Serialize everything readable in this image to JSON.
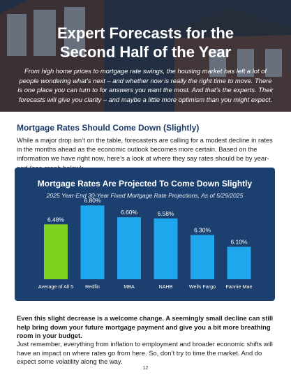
{
  "hero": {
    "title_line1": "Expert Forecasts for the",
    "title_line2": "Second Half of the Year",
    "subtitle": "From high home prices to mortgage rate swings, the housing market has left a lot of people wondering what’s next – and whether now is really the right time to move. There is one place you can turn to for answers you want the most. And that’s the experts. Their forecasts will give you clarity – and maybe a little more optimism than you might expect."
  },
  "section": {
    "title": "Mortgage Rates Should Come Down (Slightly)",
    "intro_text": "While a major drop isn’t on the table, forecasters are calling for a modest decline in rates in the months ahead as the economic outlook becomes more certain. Based on the information we have right now, here’s a look at where they say rates should be by year-end (",
    "intro_em": "see graph below",
    "intro_end": "):"
  },
  "chart_data": {
    "type": "bar",
    "title": "Mortgage Rates Are Projected To Come Down Slightly",
    "subtitle": "2025 Year-End 30-Year Fixed Mortgage Rate Projections, As of 5/29/2025",
    "categories": [
      "Average of All 5",
      "Redfin",
      "MBA",
      "NAHB",
      "Wells Fargo",
      "Fannie Mae"
    ],
    "values": [
      6.48,
      6.8,
      6.6,
      6.58,
      6.3,
      6.1
    ],
    "value_labels": [
      "6.48%",
      "6.80%",
      "6.60%",
      "6.58%",
      "6.30%",
      "6.10%"
    ],
    "ylim": [
      5.55,
      6.85
    ],
    "grid": false,
    "colors": {
      "background": "#1b3f6e",
      "highlight_bar": "#7ed321",
      "bar": "#1ea7ec",
      "text": "#ffffff"
    }
  },
  "closing": {
    "bold_paragraph": "Even this slight decrease is a welcome change. A seemingly small decline can still help bring down your future mortgage payment and give you a bit more breathing room in your budget.",
    "paragraph": "Just remember, everything from inflation to employment and broader economic shifts will have an impact on where rates go from here. So, don’t try to time the market. And do expect some volatility along the way."
  },
  "footer": {
    "page_number": "12"
  }
}
